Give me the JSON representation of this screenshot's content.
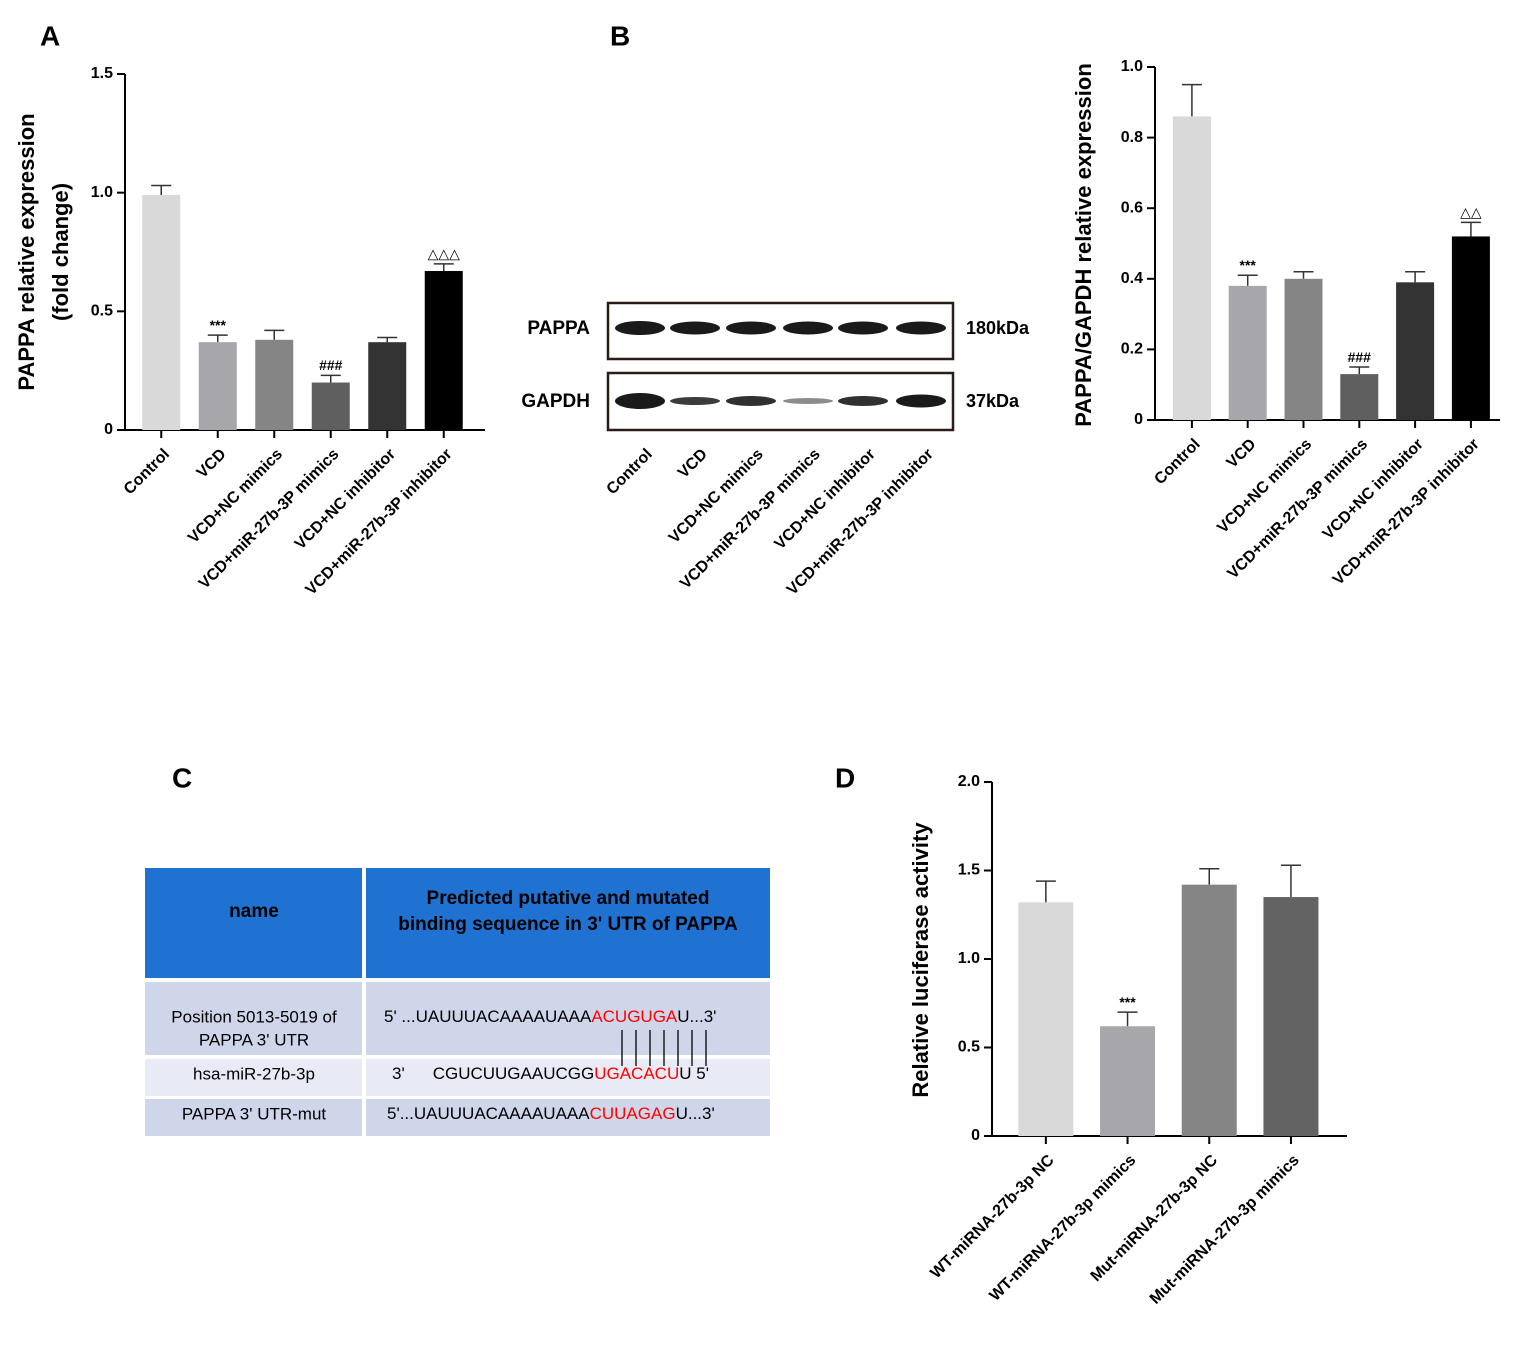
{
  "panel_labels": [
    "A",
    "B",
    "C",
    "D"
  ],
  "chart_data": [
    {
      "type": "bar",
      "ylabel": [
        "PAPPA relative expression",
        "(fold change)"
      ],
      "categories": [
        "Control",
        "VCD",
        "VCD+NC mimics",
        "VCD+miR-27b-3P mimics",
        "VCD+NC inhibitor",
        "VCD+miR-27b-3P inhibitor"
      ],
      "values": [
        0.99,
        0.37,
        0.38,
        0.2,
        0.37,
        0.67
      ],
      "errors": [
        0.04,
        0.03,
        0.04,
        0.03,
        0.02,
        0.03
      ],
      "annotations": [
        null,
        "***",
        null,
        "###",
        null,
        "△△△"
      ],
      "colors": [
        "#d9d9d9",
        "#a6a6ab",
        "#858585",
        "#5f5f5f",
        "#333333",
        "#000000"
      ],
      "ylim": [
        0,
        1.5
      ],
      "yticks": [
        0,
        0.5,
        {
          "value": 1,
          "label": "1.0"
        },
        1.5
      ]
    },
    {
      "type": "bar",
      "ylabel": [
        "PAPPA/GAPDH relative expression"
      ],
      "categories": [
        "Control",
        "VCD",
        "VCD+NC mimics",
        "VCD+miR-27b-3P mimics",
        "VCD+NC inhibitor",
        "VCD+miR-27b-3P inhibitor"
      ],
      "values": [
        0.86,
        0.38,
        0.4,
        0.13,
        0.39,
        0.52
      ],
      "errors": [
        0.09,
        0.03,
        0.02,
        0.02,
        0.03,
        0.04
      ],
      "annotations": [
        null,
        "***",
        null,
        "###",
        null,
        "△△"
      ],
      "colors": [
        "#d9d9d9",
        "#a6a6ab",
        "#858585",
        "#5f5f5f",
        "#333333",
        "#000000"
      ],
      "ylim": [
        0,
        1.0
      ],
      "yticks": [
        0,
        0.2,
        0.4,
        0.6,
        0.8,
        {
          "value": 1,
          "label": "1.0"
        }
      ]
    },
    {
      "type": "bar",
      "ylabel": [
        "Relative luciferase activity"
      ],
      "categories": [
        "WT-miRNA-27b-3p NC",
        "WT-miRNA-27b-3p mimics",
        "Mut-miRNA-27b-3p NC",
        "Mut-miRNA-27b-3p mimics"
      ],
      "values": [
        1.32,
        0.62,
        1.42,
        1.35
      ],
      "errors": [
        0.12,
        0.08,
        0.09,
        0.18
      ],
      "annotations": [
        null,
        "***",
        null,
        null
      ],
      "colors": [
        "#d9d9d9",
        "#a6a6ab",
        "#858585",
        "#636363"
      ],
      "ylim": [
        0,
        2.0
      ],
      "yticks": [
        0,
        0.5,
        {
          "value": 1,
          "label": "1.0"
        },
        1.5,
        {
          "value": 2,
          "label": "2.0"
        }
      ]
    }
  ],
  "blot": {
    "rows": [
      {
        "name": "PAPPA",
        "size": "180kDa"
      },
      {
        "name": "GAPDH",
        "size": "37kDa"
      }
    ],
    "lanes": [
      "Control",
      "VCD",
      "VCD+NC mimics",
      "VCD+miR-27b-3P mimics",
      "VCD+NC inhibitor",
      "VCD+miR-27b-3P inhibitor"
    ]
  },
  "table": {
    "header": [
      [
        "name"
      ],
      [
        "Predicted putative and mutated",
        "binding sequence in 3' UTR of PAPPA"
      ]
    ],
    "rows": [
      {
        "name": [
          "Position 5013-5019 of",
          "PAPPA 3' UTR"
        ],
        "sequence": [
          {
            "text": "5' ...UAUUUACAAAAUAAA",
            "color": "#000000"
          },
          {
            "text": "ACUGUGA",
            "color": "#ff0000"
          },
          {
            "text": "U...3'",
            "color": "#000000"
          }
        ]
      },
      {
        "name": [
          "hsa-miR-27b-3p"
        ],
        "sequence": [
          {
            "text": "3'",
            "color": "#000000"
          },
          {
            "text": "CGUCUUGAAUCGG",
            "color": "#000000"
          },
          {
            "text": "UGACACU",
            "color": "#ff0000"
          },
          {
            "text": "U 5'",
            "color": "#000000"
          }
        ]
      },
      {
        "name": [
          "PAPPA 3' UTR-mut"
        ],
        "sequence": [
          {
            "text": "5'...UAUUUACAAAAUAAA",
            "color": "#000000"
          },
          {
            "text": "CUUAGAG",
            "color": "#ff0000"
          },
          {
            "text": "U...3'",
            "color": "#000000"
          }
        ]
      }
    ]
  }
}
